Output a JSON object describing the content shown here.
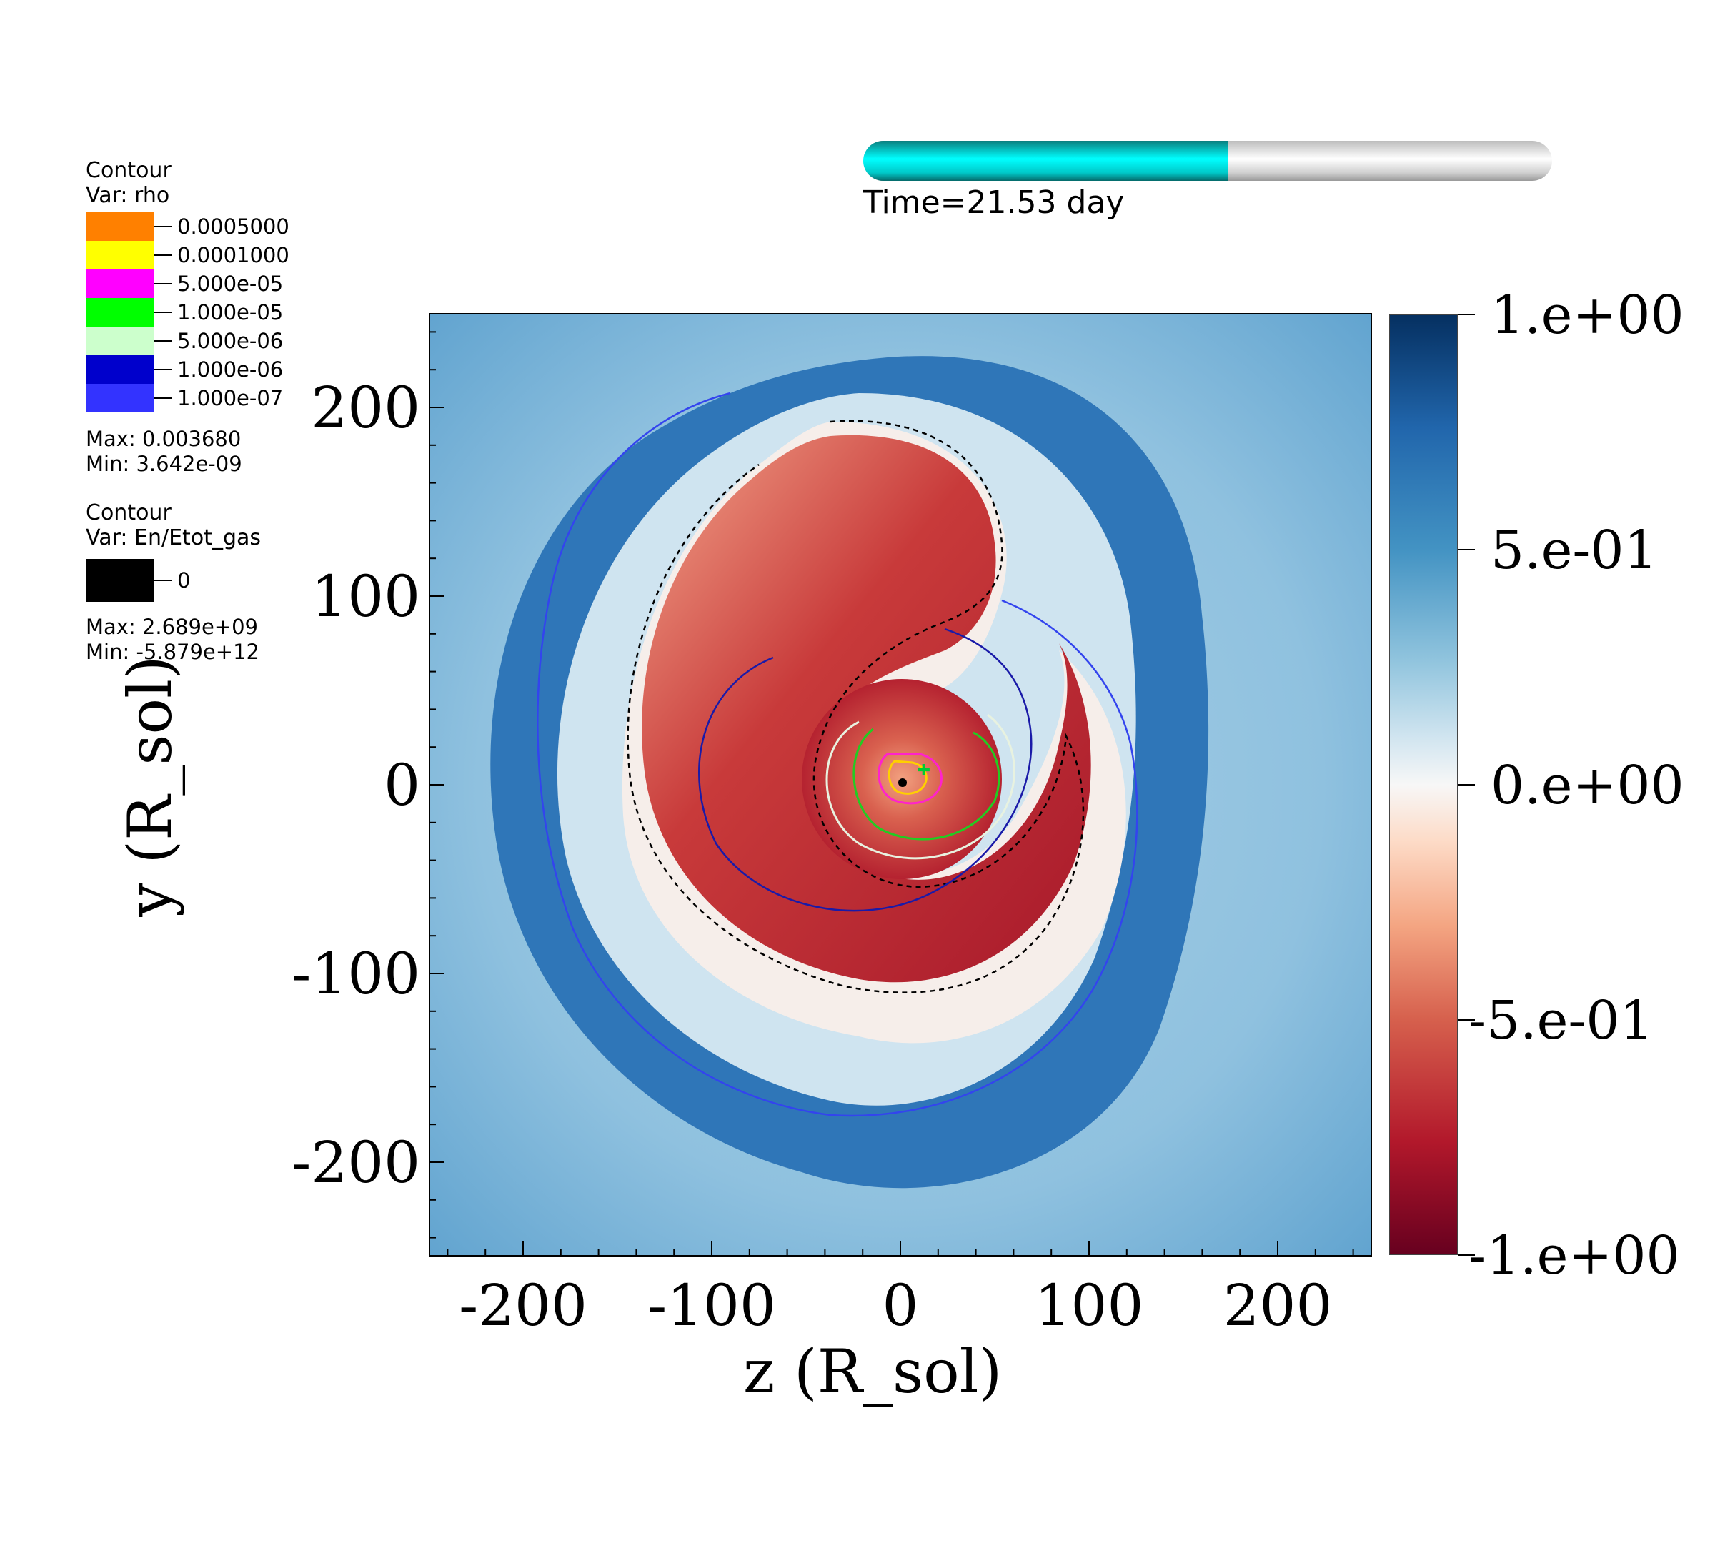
{
  "legend_rho": {
    "title": "Contour",
    "var": "Var: rho",
    "levels": [
      {
        "label": "0.0005000",
        "color": "#ff8000"
      },
      {
        "label": "0.0001000",
        "color": "#ffff00"
      },
      {
        "label": "5.000e-05",
        "color": "#ff00ff"
      },
      {
        "label": "1.000e-05",
        "color": "#00ff00"
      },
      {
        "label": "5.000e-06",
        "color": "#ccffcc"
      },
      {
        "label": "1.000e-06",
        "color": "#0000cc"
      },
      {
        "label": "1.000e-07",
        "color": "#3333ff"
      }
    ],
    "max": "Max:  0.003680",
    "min": "Min:  3.642e-09"
  },
  "legend_energy": {
    "title": "Contour",
    "var": "Var: En/Etot_gas",
    "levels": [
      {
        "label": "0",
        "color": "#000000"
      }
    ],
    "max": "Max:  2.689e+09",
    "min": "Min: -5.879e+12"
  },
  "time": {
    "label": "Time=21.53 day",
    "progress": 0.53
  },
  "plot": {
    "xlabel": "z (R_sol)",
    "ylabel": "y (R_sol)",
    "xticks": [
      "-200",
      "-100",
      "0",
      "100",
      "200"
    ],
    "yticks": [
      "200",
      "100",
      "0",
      "-100",
      "-200"
    ],
    "xlim": [
      -250,
      250
    ],
    "ylim": [
      -250,
      250
    ]
  },
  "colorbar": {
    "ticks": [
      "1.e+00",
      "5.e-01",
      "0.e+00",
      "-5.e-01",
      "-1.e+00"
    ],
    "range": [
      -1,
      1
    ]
  }
}
